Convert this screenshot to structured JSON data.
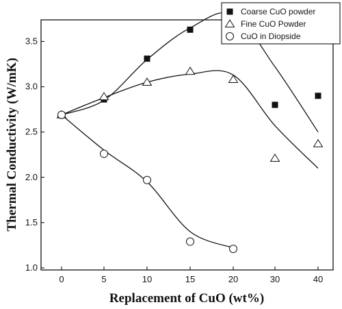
{
  "chart_data": {
    "type": "scatter",
    "title": "",
    "xlabel": "Replacement of CuO (wt%)",
    "ylabel": "Thermal Conductivity (W/mK)",
    "categories": [
      "0",
      "5",
      "10",
      "15",
      "20",
      "30",
      "40"
    ],
    "x": [
      0,
      5,
      10,
      15,
      20,
      30,
      40
    ],
    "ylim": [
      1.0,
      4.3
    ],
    "yticks": [
      "1.0",
      "1.5",
      "2.0",
      "2.5",
      "3.0",
      "3.5",
      "4.0"
    ],
    "legend_position": "top-right",
    "grid": false,
    "series": [
      {
        "name": "Coarse CuO powder",
        "marker": "filled-square",
        "values": [
          2.69,
          2.86,
          3.31,
          3.63,
          3.79,
          2.8,
          2.9
        ],
        "fit": [
          2.69,
          2.85,
          3.3,
          3.65,
          3.8,
          3.22,
          2.5
        ]
      },
      {
        "name": "Fine CuO Powder",
        "marker": "open-triangle",
        "values": [
          2.69,
          2.89,
          3.05,
          3.17,
          3.08,
          2.21,
          2.37
        ],
        "fit": [
          2.69,
          2.88,
          3.05,
          3.14,
          3.13,
          2.57,
          2.1
        ]
      },
      {
        "name": "CuO in Diopside",
        "marker": "open-circle",
        "values": [
          2.69,
          2.26,
          1.97,
          1.29,
          1.21
        ],
        "fit": [
          2.69,
          2.3,
          1.95,
          1.4,
          1.22
        ]
      }
    ]
  }
}
